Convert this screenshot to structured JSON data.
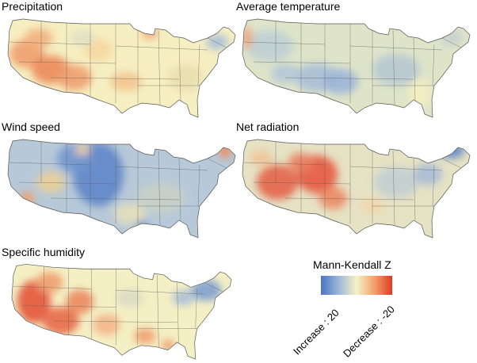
{
  "panels": [
    {
      "title": "Precipitation",
      "pattern": "precip"
    },
    {
      "title": "Average temperature",
      "pattern": "temp"
    },
    {
      "title": "Wind speed",
      "pattern": "wind"
    },
    {
      "title": "Net radiation",
      "pattern": "rad"
    },
    {
      "title": "Specific humidity",
      "pattern": "humid"
    }
  ],
  "legend": {
    "title": "Mann-Kendall Z",
    "increase_label": "Increase : 20",
    "decrease_label": "Decrease : -20",
    "colors": [
      "#4a74c6",
      "#9cb7d8",
      "#f5f2c7",
      "#f3a06a",
      "#e03a24"
    ]
  }
}
